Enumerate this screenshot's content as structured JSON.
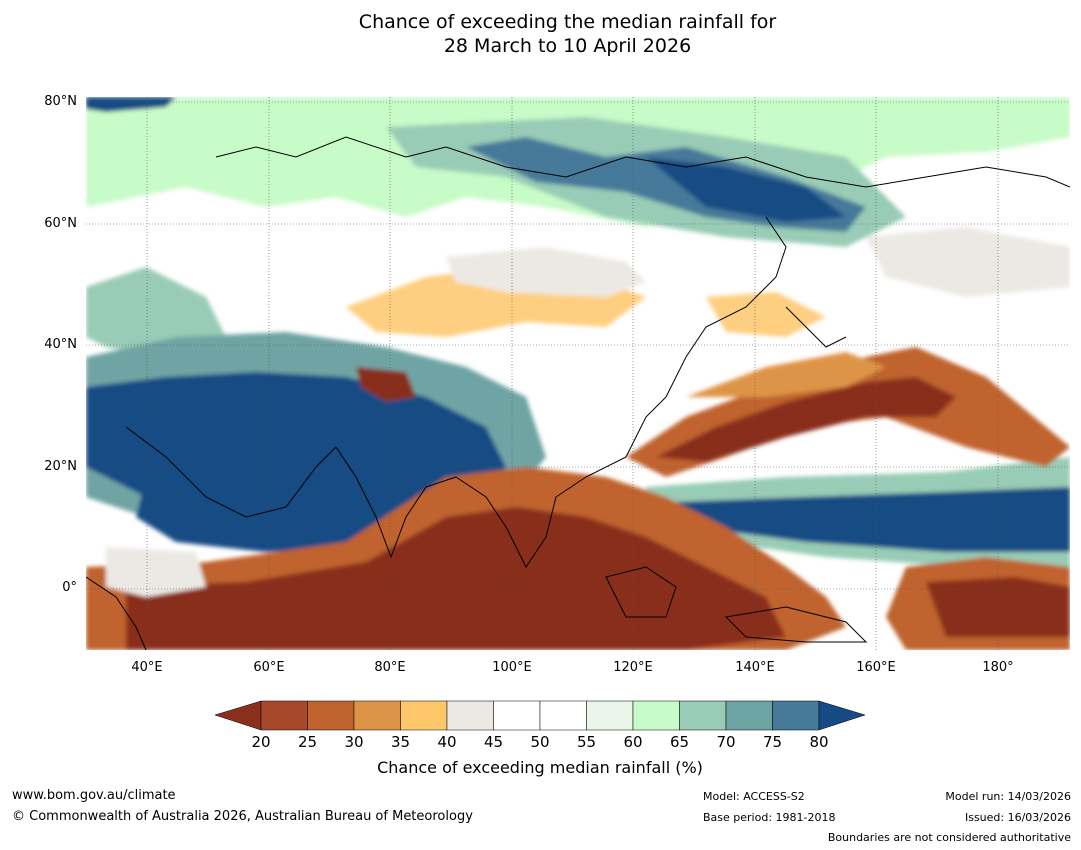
{
  "title": {
    "line1": "Chance of exceeding the median rainfall for",
    "line2": "28 March to 10 April 2026"
  },
  "map": {
    "lat_labels": [
      "80°N",
      "60°N",
      "40°N",
      "20°N",
      "0°"
    ],
    "lon_labels": [
      "40°E",
      "60°E",
      "80°E",
      "100°E",
      "120°E",
      "140°E",
      "160°E",
      "180°"
    ],
    "lat_range": [
      -10,
      81
    ],
    "lon_range": [
      30,
      192
    ]
  },
  "colorbar": {
    "ticks": [
      "20",
      "25",
      "30",
      "35",
      "40",
      "45",
      "50",
      "55",
      "60",
      "65",
      "70",
      "75",
      "80"
    ],
    "colors": [
      "#8a2f1b",
      "#a8482a",
      "#c0632f",
      "#de9447",
      "#fec76a",
      "#ece9e4",
      "#ffffff",
      "#ffffff",
      "#e8f5e8",
      "#c7fbc7",
      "#98ccb6",
      "#6fa4a4",
      "#46799a",
      "#144b84"
    ],
    "label": "Chance of exceeding median rainfall (%)"
  },
  "footer": {
    "website": "www.bom.gov.au/climate",
    "copyright": "© Commonwealth of Australia 2026, Australian Bureau of Meteorology",
    "model": "Model: ACCESS-S2",
    "base_period": "Base period: 1981-2018",
    "model_run": "Model run: 14/03/2026",
    "issued": "Issued: 16/03/2026",
    "boundaries": "Boundaries are not considered authoritative"
  }
}
